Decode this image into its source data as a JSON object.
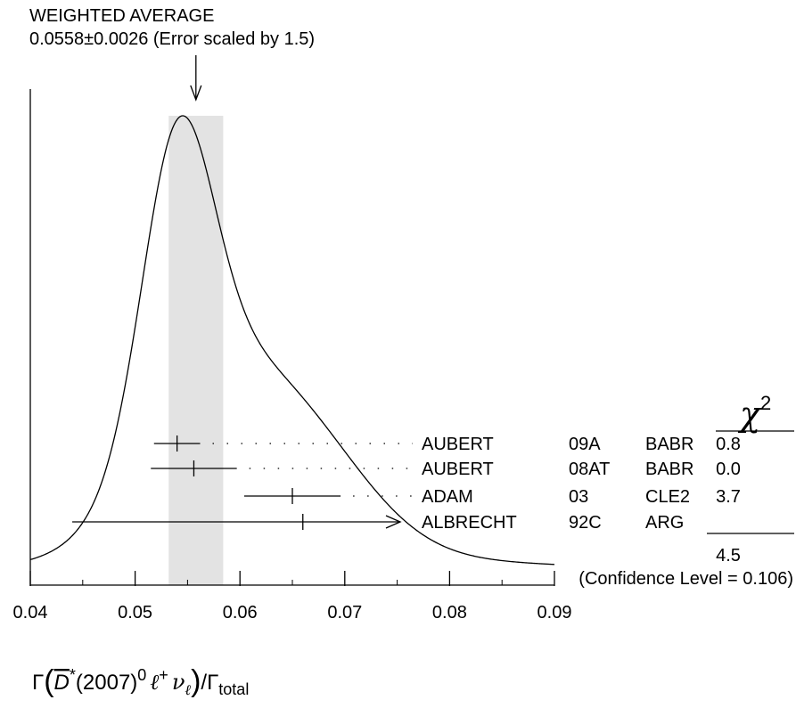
{
  "chart_data": {
    "type": "scatter",
    "title": "WEIGHTED AVERAGE",
    "subtitle": "0.0558±0.0026 (Error scaled by 1.5)",
    "weighted_average": {
      "value": 0.0558,
      "error": 0.0026,
      "scale_factor": 1.5
    },
    "xlim": [
      0.04,
      0.09
    ],
    "x_ticks": [
      "0.04",
      "0.05",
      "0.06",
      "0.07",
      "0.08",
      "0.09"
    ],
    "x_tick_values": [
      0.04,
      0.05,
      0.06,
      0.07,
      0.08,
      0.09
    ],
    "xlabel": {
      "gamma": "Γ",
      "dbar": "D",
      "star": "*",
      "paren": "(2007)",
      "zero": "0",
      "ell": "ℓ",
      "plus": "+",
      "nu": "ν",
      "nu_sub": "ℓ",
      "slash": "/",
      "gamma2": "Γ",
      "total": "total"
    },
    "chi2_header": {
      "chi": "χ",
      "exp": "2"
    },
    "measurements": [
      {
        "value": 0.054,
        "err_low": 0.0022,
        "err_high": 0.0022,
        "author": "AUBERT",
        "year": "09A",
        "exp": "BABR",
        "chi2": "0.8"
      },
      {
        "value": 0.0556,
        "err_low": 0.0041,
        "err_high": 0.0041,
        "author": "AUBERT",
        "year": "08AT",
        "exp": "BABR",
        "chi2": "0.0"
      },
      {
        "value": 0.065,
        "err_low": 0.0046,
        "err_high": 0.0046,
        "author": "ADAM",
        "year": "03",
        "exp": "CLE2",
        "chi2": "3.7"
      },
      {
        "value": 0.066,
        "err_low": 0.022,
        "err_high": null,
        "author": "ALBRECHT",
        "year": "92C",
        "exp": "ARG",
        "chi2": ""
      }
    ],
    "chi2_total": "4.5",
    "confidence_level": "(Confidence Level = 0.106)",
    "ideogram": true,
    "grid": false
  }
}
